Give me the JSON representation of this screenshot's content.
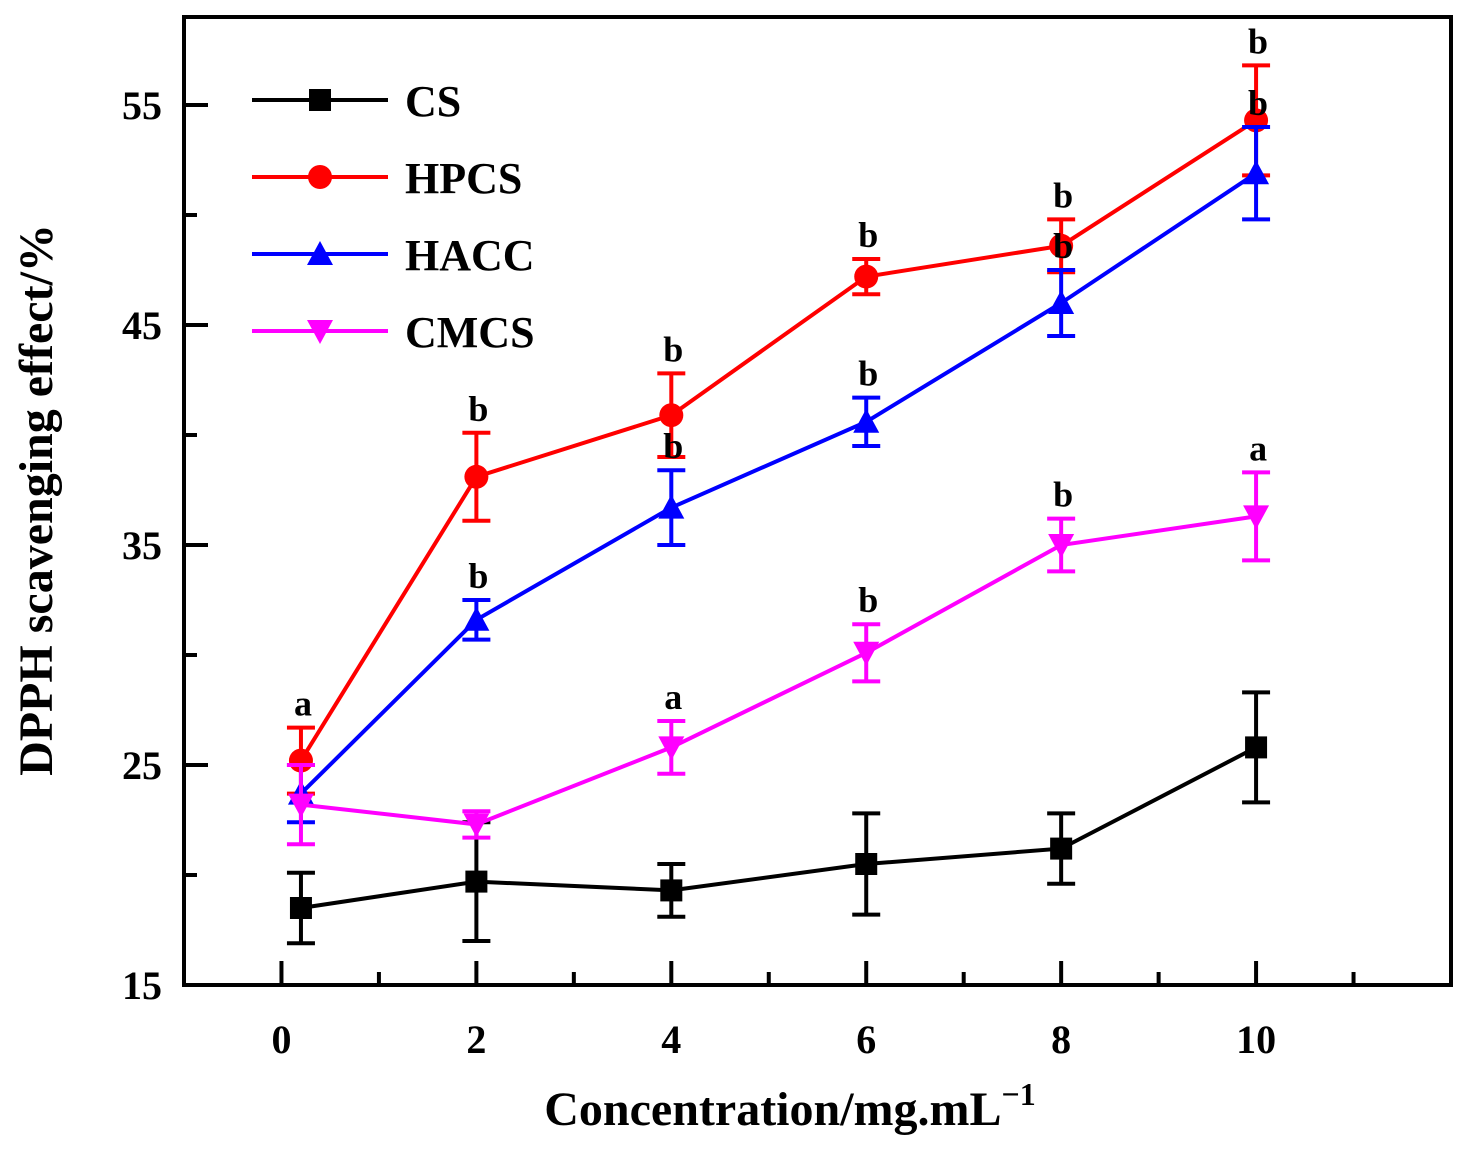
{
  "chart_data": {
    "type": "line",
    "title": "",
    "xlabel": "Concentration/mg.mL",
    "xlabel_superscript": "−1",
    "ylabel": "DPPH scavenging effect/%",
    "xlim": [
      -1,
      12
    ],
    "ylim": [
      15,
      59
    ],
    "x_ticks": [
      0,
      2,
      4,
      6,
      8,
      10
    ],
    "x_minor_ticks": [
      1,
      3,
      5,
      7,
      9,
      11
    ],
    "x_tick_labels": [
      "0",
      "2",
      "4",
      "6",
      "8",
      "10"
    ],
    "y_ticks": [
      15,
      25,
      35,
      45,
      55
    ],
    "y_minor_ticks": [
      20,
      30,
      40,
      50
    ],
    "y_tick_labels": [
      "15",
      "25",
      "35",
      "45",
      "55"
    ],
    "grid": false,
    "legend_position": "top-left",
    "series": [
      {
        "name": "CS",
        "color": "#000000",
        "marker": "square",
        "x": [
          0.2,
          2,
          4,
          6,
          8,
          10
        ],
        "y": [
          18.5,
          19.7,
          19.3,
          20.5,
          21.2,
          25.8
        ],
        "err": [
          1.6,
          2.7,
          1.2,
          2.3,
          1.6,
          2.5
        ],
        "sig": [
          null,
          null,
          null,
          null,
          null,
          null
        ]
      },
      {
        "name": "HPCS",
        "color": "#ff0000",
        "marker": "circle",
        "x": [
          0.2,
          2,
          4,
          6,
          8,
          10
        ],
        "y": [
          25.2,
          38.1,
          40.9,
          47.2,
          48.6,
          54.3
        ],
        "err": [
          1.5,
          2.0,
          1.9,
          0.8,
          1.2,
          2.5
        ],
        "sig": [
          "a",
          "b",
          "b",
          "b",
          "b",
          "b"
        ]
      },
      {
        "name": "HACC",
        "color": "#0000ff",
        "marker": "triangle-up",
        "x": [
          0.2,
          2,
          4,
          6,
          8,
          10
        ],
        "y": [
          23.7,
          31.6,
          36.7,
          40.6,
          46.0,
          51.9
        ],
        "err": [
          1.3,
          0.9,
          1.7,
          1.1,
          1.5,
          2.1
        ],
        "sig": [
          null,
          "b",
          "b",
          "b",
          "b",
          "b"
        ]
      },
      {
        "name": "CMCS",
        "color": "#ff00ff",
        "marker": "triangle-down",
        "x": [
          0.2,
          2,
          4,
          6,
          8,
          10
        ],
        "y": [
          23.2,
          22.3,
          25.8,
          30.1,
          35.0,
          36.3
        ],
        "err": [
          1.8,
          0.6,
          1.2,
          1.3,
          1.2,
          2.0
        ],
        "sig": [
          null,
          null,
          "a",
          "b",
          "b",
          "a"
        ]
      }
    ]
  }
}
